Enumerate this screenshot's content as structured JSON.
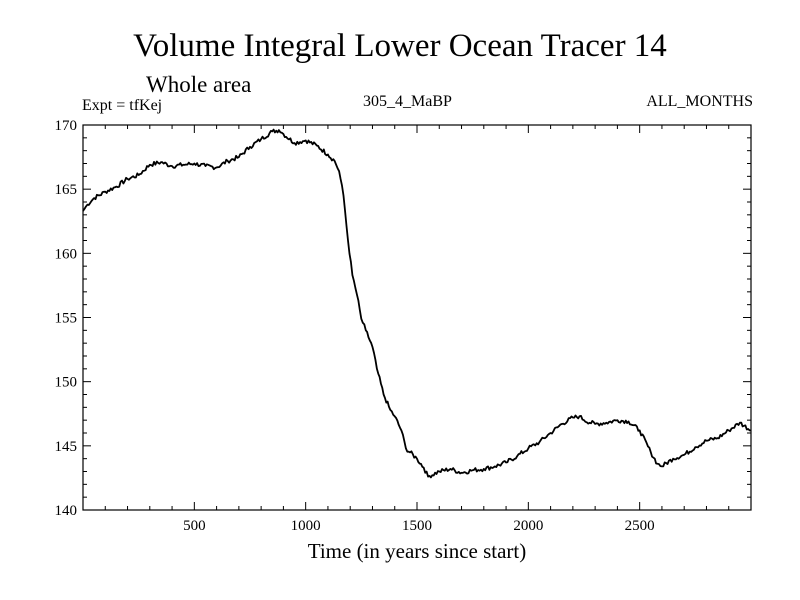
{
  "header": {
    "title": "Volume Integral Lower Ocean Tracer 14",
    "subtitle": "Whole area",
    "expt": "Expt = tfKej",
    "expt_name": "305_4_MaBP",
    "period": "ALL_MONTHS"
  },
  "chart_data": {
    "type": "line",
    "title": "Volume Integral Lower Ocean Tracer 14",
    "subtitle": "Whole area",
    "xlabel": "Time (in years since start)",
    "ylabel": "",
    "xlim": [
      0,
      3000
    ],
    "ylim": [
      140,
      170
    ],
    "xticks": [
      500,
      1000,
      1500,
      2000,
      2500
    ],
    "yticks": [
      140,
      145,
      150,
      155,
      160,
      165,
      170
    ],
    "grid": false,
    "series": [
      {
        "color": "#000000",
        "x": [
          0,
          20,
          50,
          100,
          150,
          200,
          250,
          300,
          350,
          400,
          450,
          500,
          550,
          600,
          650,
          700,
          750,
          800,
          850,
          880,
          900,
          950,
          1000,
          1050,
          1100,
          1130,
          1150,
          1170,
          1190,
          1210,
          1230,
          1250,
          1270,
          1300,
          1320,
          1350,
          1380,
          1400,
          1430,
          1450,
          1500,
          1530,
          1550,
          1600,
          1650,
          1700,
          1750,
          1800,
          1850,
          1900,
          1950,
          2000,
          2050,
          2100,
          2150,
          2200,
          2230,
          2250,
          2300,
          2350,
          2400,
          2450,
          2500,
          2550,
          2580,
          2600,
          2650,
          2700,
          2750,
          2800,
          2850,
          2900,
          2950,
          3000
        ],
        "y": [
          163.3,
          163.8,
          164.3,
          164.8,
          165.2,
          165.8,
          166.1,
          166.9,
          167.1,
          166.8,
          166.9,
          167.0,
          166.8,
          166.7,
          167.2,
          167.5,
          168.3,
          168.9,
          169.5,
          169.6,
          169.3,
          168.6,
          168.8,
          168.4,
          167.7,
          167.2,
          166.4,
          164.5,
          161.0,
          158.3,
          156.8,
          154.9,
          154.0,
          152.7,
          151.0,
          149.0,
          147.8,
          147.3,
          146.2,
          144.8,
          144.0,
          143.3,
          142.6,
          143.0,
          143.2,
          142.9,
          143.1,
          143.2,
          143.4,
          143.7,
          144.2,
          144.8,
          145.3,
          146.0,
          146.7,
          147.2,
          147.3,
          147.0,
          146.7,
          146.8,
          147.0,
          146.9,
          146.2,
          144.5,
          143.6,
          143.4,
          144.0,
          144.3,
          144.9,
          145.4,
          145.6,
          146.2,
          146.8,
          146.2
        ]
      }
    ]
  }
}
